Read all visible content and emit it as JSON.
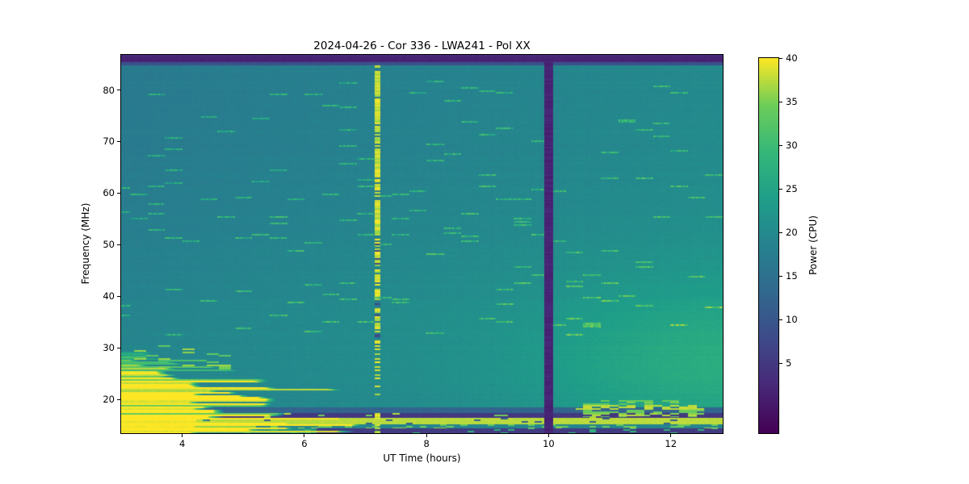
{
  "chart_data": {
    "type": "heatmap",
    "title": "2024-04-26 - Cor 336 - LWA241 - Pol XX",
    "xlabel": "UT Time (hours)",
    "ylabel": "Frequency (MHz)",
    "colorbar_label": "Power (CPU)",
    "x_range": [
      3.0,
      12.85
    ],
    "y_range": [
      13.5,
      86.8
    ],
    "x_ticks": [
      4,
      6,
      8,
      10,
      12
    ],
    "y_ticks": [
      20,
      30,
      40,
      50,
      60,
      70,
      80
    ],
    "colorbar_ticks": [
      5,
      10,
      15,
      20,
      25,
      30,
      35,
      40
    ],
    "power_range": [
      -3,
      40
    ],
    "colormap": "viridis",
    "colormap_stops": [
      [
        0.0,
        [
          68,
          1,
          84
        ]
      ],
      [
        0.125,
        [
          72,
          40,
          120
        ]
      ],
      [
        0.25,
        [
          62,
          74,
          137
        ]
      ],
      [
        0.375,
        [
          49,
          104,
          142
        ]
      ],
      [
        0.5,
        [
          38,
          130,
          142
        ]
      ],
      [
        0.625,
        [
          31,
          158,
          137
        ]
      ],
      [
        0.75,
        [
          53,
          183,
          121
        ]
      ],
      [
        0.875,
        [
          109,
          205,
          89
        ]
      ],
      [
        1.0,
        [
          253,
          231,
          37
        ]
      ]
    ],
    "base": {
      "level": 16.8,
      "time_slope": 0.33,
      "bump_amp": 2.2,
      "bump_center": 30,
      "bump_sigma": 26,
      "row_noise": 0.7,
      "col_noise": 0.35
    },
    "features": {
      "top_band": {
        "f_start": 85.4,
        "power": 1.2
      },
      "gap_line": {
        "t": 10.0,
        "halfwidth": 0.075,
        "power": 1.0
      },
      "burst_column": {
        "t": 7.2,
        "halfwidth": 0.048,
        "bright_power": 36,
        "mid_power": 17,
        "dark_power": 8
      },
      "solar_burst": {
        "f_center": 17.0,
        "len_max": 4.1,
        "amp": 40
      },
      "right_glow": {
        "t_mid": 10.4,
        "rise": 0.8,
        "f_center": 27,
        "f_sigma": 15,
        "amp": 5
      },
      "rfi_bands": [
        {
          "f_lo": 17.4,
          "f_hi": 18.4,
          "power": 12.5
        },
        {
          "f_lo": 16.4,
          "f_hi": 17.4,
          "power": 5,
          "dash_prob": 0.05,
          "dash_power": 34
        },
        {
          "f_lo": 15.2,
          "f_hi": 16.4,
          "power": 37.5,
          "gap_prob": 0.05,
          "gap_power": 12
        },
        {
          "f_lo": 14.3,
          "f_hi": 15.2,
          "power": 19,
          "left_until": 5.2,
          "left_power": 36,
          "dash_prob": 0.18,
          "dash_power": 33
        },
        {
          "f_lo": 13.5,
          "f_hi": 14.3,
          "power": 5.5,
          "left_until": 6.2,
          "left_power": 21,
          "dash_prob": 0.08,
          "dash_power": 27
        }
      ],
      "dash_cluster": {
        "t_lo": 10.45,
        "t_hi": 12.55,
        "f_lo": 16.6,
        "f_hi": 19.8,
        "prob": 0.42,
        "power": 33
      },
      "speckle_prob": 0.025
    }
  }
}
